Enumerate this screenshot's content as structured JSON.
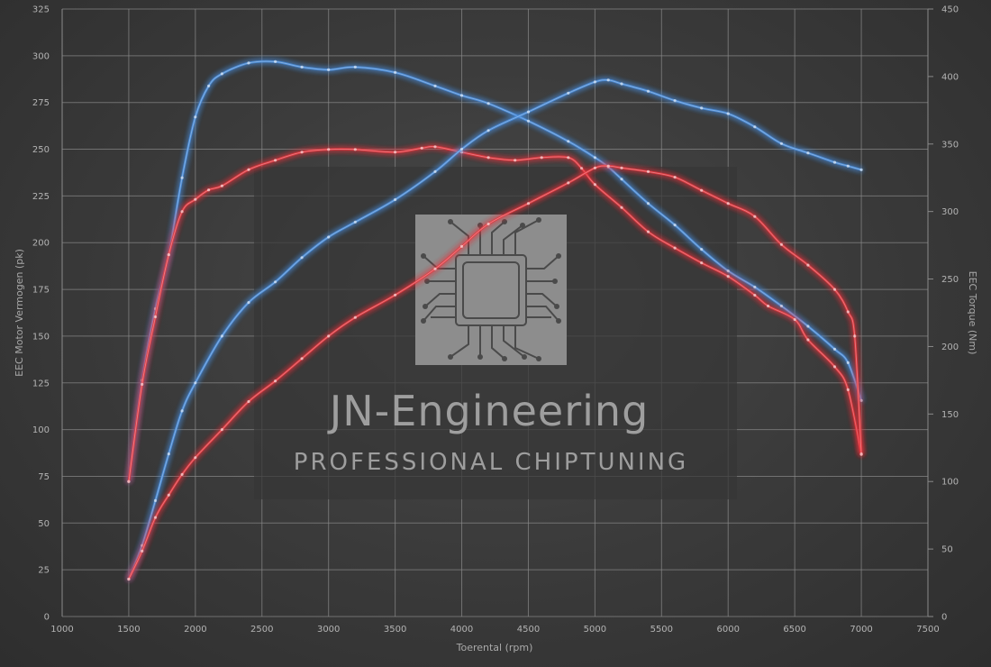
{
  "watermark": {
    "title": "JN-Engineering",
    "subtitle": "PROFESSIONAL CHIPTUNING"
  },
  "colors": {
    "stock": "#4a8fe0",
    "tuned": "#e8353c",
    "grid": "#8a8a8a",
    "tick_text": "#b4b4b4"
  },
  "chart_data": {
    "type": "line",
    "xlabel": "Toerental (rpm)",
    "ylabel_left": "EEC Motor Vermogen (pk)",
    "ylabel_right": "EEC Torque (Nm)",
    "xlim": [
      1000,
      7500
    ],
    "ylim_left": [
      0,
      325
    ],
    "ylim_right": [
      0,
      450
    ],
    "x_ticks": [
      1000,
      1500,
      2000,
      2500,
      3000,
      3500,
      4000,
      4500,
      5000,
      5500,
      6000,
      6500,
      7000,
      7500
    ],
    "y_left_ticks": [
      0,
      25,
      50,
      75,
      100,
      125,
      150,
      175,
      200,
      225,
      250,
      275,
      300,
      325
    ],
    "y_right_ticks": [
      0,
      50,
      100,
      150,
      200,
      250,
      300,
      350,
      400,
      450
    ],
    "grid": true,
    "series": [
      {
        "key": "torque-stock",
        "axis": "right",
        "color": "#4a8fe0",
        "x": [
          1500,
          1600,
          1700,
          1800,
          1900,
          2000,
          2100,
          2200,
          2400,
          2600,
          2800,
          3000,
          3200,
          3500,
          3800,
          4000,
          4200,
          4500,
          4800,
          5000,
          5100,
          5200,
          5400,
          5600,
          5800,
          6000,
          6200,
          6400,
          6600,
          6800,
          6900,
          7000
        ],
        "y": [
          100,
          175,
          228,
          268,
          325,
          370,
          393,
          402,
          410,
          411,
          407,
          405,
          407,
          403,
          393,
          386,
          380,
          367,
          352,
          340,
          333,
          324,
          306,
          290,
          272,
          256,
          244,
          230,
          215,
          198,
          188,
          160
        ]
      },
      {
        "key": "torque-tuned",
        "axis": "right",
        "color": "#e8353c",
        "x": [
          1500,
          1600,
          1700,
          1800,
          1900,
          2000,
          2100,
          2200,
          2400,
          2600,
          2800,
          3000,
          3200,
          3500,
          3700,
          3800,
          4000,
          4200,
          4400,
          4600,
          4800,
          4900,
          5000,
          5200,
          5400,
          5600,
          5800,
          6000,
          6200,
          6300,
          6500,
          6600,
          6800,
          6900,
          7000
        ],
        "y": [
          100,
          172,
          222,
          268,
          300,
          309,
          316,
          319,
          331,
          338,
          344,
          346,
          346,
          344,
          347,
          348,
          344,
          340,
          338,
          340,
          340,
          332,
          320,
          303,
          285,
          273,
          262,
          252,
          238,
          230,
          220,
          205,
          185,
          168,
          120
        ]
      },
      {
        "key": "power-stock",
        "axis": "left",
        "color": "#4a8fe0",
        "x": [
          1500,
          1600,
          1700,
          1800,
          1900,
          2000,
          2200,
          2400,
          2600,
          2800,
          3000,
          3200,
          3500,
          3800,
          4000,
          4200,
          4500,
          4800,
          5000,
          5100,
          5200,
          5400,
          5600,
          5800,
          6000,
          6200,
          6400,
          6600,
          6800,
          6900,
          7000
        ],
        "y": [
          20,
          38,
          62,
          87,
          110,
          125,
          150,
          168,
          179,
          192,
          203,
          211,
          223,
          238,
          250,
          260,
          270,
          280,
          286,
          287,
          285,
          281,
          276,
          272,
          269,
          262,
          253,
          248,
          243,
          241,
          239
        ]
      },
      {
        "key": "power-tuned",
        "axis": "left",
        "color": "#e8353c",
        "x": [
          1500,
          1600,
          1700,
          1800,
          1900,
          2000,
          2200,
          2400,
          2600,
          2800,
          3000,
          3200,
          3500,
          3800,
          4000,
          4200,
          4500,
          4800,
          5000,
          5100,
          5200,
          5400,
          5600,
          5800,
          6000,
          6200,
          6400,
          6600,
          6800,
          6900,
          6950,
          7000
        ],
        "y": [
          20,
          35,
          53,
          65,
          76,
          85,
          100,
          115,
          126,
          138,
          150,
          160,
          172,
          186,
          198,
          210,
          221,
          232,
          240,
          241,
          240,
          238,
          235,
          228,
          221,
          214,
          199,
          188,
          175,
          163,
          150,
          87
        ]
      }
    ]
  }
}
